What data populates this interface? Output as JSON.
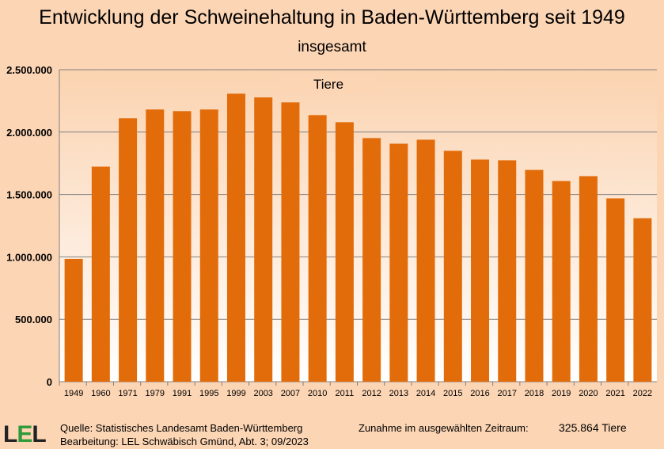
{
  "title": "Entwicklung der Schweinehaltung in Baden-Württemberg seit 1949",
  "subtitle": "insgesamt",
  "chart_data": {
    "type": "bar",
    "title": "Entwicklung der Schweinehaltung in Baden-Württemberg seit 1949",
    "subtitle": "insgesamt",
    "series_label": "Tiere",
    "categories": [
      "1949",
      "1960",
      "1971",
      "1979",
      "1991",
      "1995",
      "1999",
      "2003",
      "2007",
      "2010",
      "2011",
      "2012",
      "2013",
      "2014",
      "2015",
      "2016",
      "2017",
      "2018",
      "2019",
      "2020",
      "2021",
      "2022"
    ],
    "values": [
      984000,
      1723000,
      2111000,
      2181000,
      2168000,
      2181000,
      2308000,
      2278000,
      2238000,
      2136000,
      2079000,
      1952000,
      1907000,
      1939000,
      1850000,
      1780000,
      1774000,
      1697000,
      1608000,
      1647000,
      1469000,
      1310000
    ],
    "ylim": [
      0,
      2500000
    ],
    "yticks": [
      "0",
      "500.000",
      "1.000.000",
      "1.500.000",
      "2.000.000",
      "2.500.000"
    ],
    "grid": true,
    "bar_color": "#e36c0a"
  },
  "footer": {
    "logo": "LEL",
    "source": "Quelle: Statistisches Landesamt Baden-Württemberg",
    "editor": "Bearbeitung: LEL Schwäbisch Gmünd, Abt. 3; 09/2023",
    "change_label": "Zunahme im ausgewählten Zeitraum:",
    "change_value": "325.864",
    "change_unit": "Tiere"
  }
}
